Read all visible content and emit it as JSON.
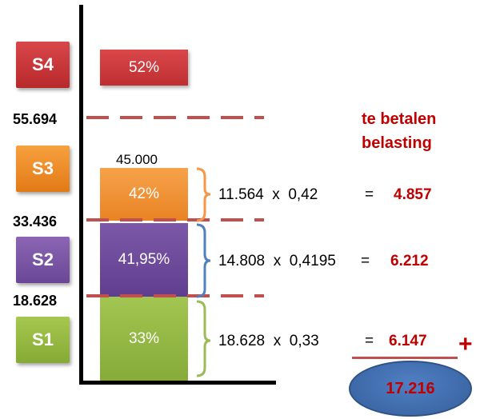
{
  "brackets": {
    "labels": [
      {
        "id": "s4",
        "text": "S4"
      },
      {
        "id": "s3",
        "text": "S3"
      },
      {
        "id": "s2",
        "text": "S2"
      },
      {
        "id": "s1",
        "text": "S1"
      }
    ]
  },
  "bars": [
    {
      "id": "s4",
      "rate": "52%"
    },
    {
      "id": "s3",
      "rate": "42%"
    },
    {
      "id": "s2",
      "rate": "41,95%"
    },
    {
      "id": "s1",
      "rate": "33%"
    }
  ],
  "thresholds": [
    "55.694",
    "33.436",
    "18.628"
  ],
  "income_label": "45.000",
  "calculations": [
    {
      "amount": "11.564",
      "times": "x",
      "factor": "0,42",
      "equals": "=",
      "result": "4.857"
    },
    {
      "amount": "14.808",
      "times": "x",
      "factor": "0,4195",
      "equals": "=",
      "result": "6.212"
    },
    {
      "amount": "18.628",
      "times": "x",
      "factor": "0,33",
      "equals": "=",
      "result": "6.147"
    }
  ],
  "note": {
    "line1": "te betalen",
    "line2": "belasting"
  },
  "sum_operator": "+",
  "total": "17.216",
  "colors": {
    "s4": "#c0504d",
    "s3": "#f79646",
    "s2": "#8064a2",
    "s1": "#9bbb59",
    "dash": "#c0504d",
    "bracket_s3": "#f79646",
    "bracket_s2": "#4f81bd",
    "bracket_s1": "#9bbb59",
    "result": "#c00000",
    "total_fill": "#4f81bd"
  }
}
